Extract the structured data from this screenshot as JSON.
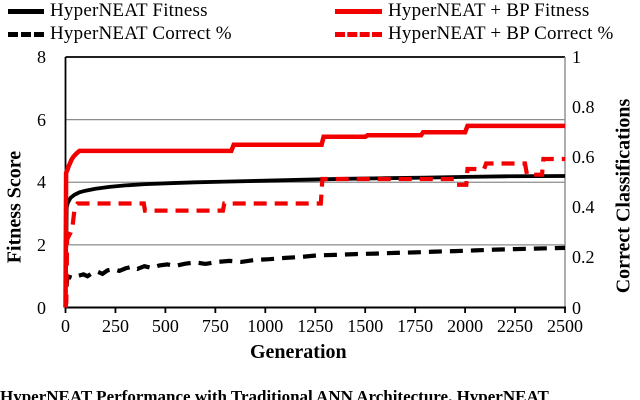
{
  "figure": {
    "caption_visible_fragment": "HyperNEAT Performance with Traditional ANN Architecture. HyperNEAT",
    "colors": {
      "series_red": "#f20000",
      "series_black": "#000000",
      "gridline": "#8c8c8c",
      "axis": "#000000",
      "background": "#ffffff"
    }
  },
  "chart_data": {
    "type": "line",
    "title": "",
    "xlabel": "Generation",
    "ylabel_left": "Fitness Score",
    "ylabel_right": "Correct Classifications",
    "xlim": [
      0,
      2500
    ],
    "ylim_left": [
      0,
      8
    ],
    "ylim_right": [
      0,
      1
    ],
    "grid": "horizontal-only",
    "legend_position": "top",
    "x_ticks": [
      {
        "label": "0",
        "v": 0
      },
      {
        "label": "250",
        "v": 250
      },
      {
        "label": "500",
        "v": 500
      },
      {
        "label": "750",
        "v": 750
      },
      {
        "label": "1000",
        "v": 1000
      },
      {
        "label": "1250",
        "v": 1250
      },
      {
        "label": "1500",
        "v": 1500
      },
      {
        "label": "1750",
        "v": 1750
      },
      {
        "label": "2000",
        "v": 2000
      },
      {
        "label": "2250",
        "v": 2250
      },
      {
        "label": "2500",
        "v": 2500
      }
    ],
    "y_left_ticks": [
      {
        "label": "0",
        "v": 0
      },
      {
        "label": "2",
        "v": 2
      },
      {
        "label": "4",
        "v": 4
      },
      {
        "label": "6",
        "v": 6
      },
      {
        "label": "8",
        "v": 8
      }
    ],
    "y_right_ticks": [
      {
        "label": "0",
        "v": 0
      },
      {
        "label": "0.2",
        "v": 0.2
      },
      {
        "label": "0.4",
        "v": 0.4
      },
      {
        "label": "0.6",
        "v": 0.6
      },
      {
        "label": "0.8",
        "v": 0.8
      },
      {
        "label": "1",
        "v": 1
      }
    ],
    "series": [
      {
        "name": "HyperNEAT Fitness",
        "axis": "left",
        "color": "#000000",
        "dash": "solid",
        "width": 3.8,
        "x": [
          0,
          6,
          12,
          25,
          45,
          70,
          100,
          150,
          220,
          300,
          400,
          520,
          650,
          800,
          1000,
          1200,
          1400,
          1600,
          1800,
          2000,
          2200,
          2500
        ],
        "y": [
          0,
          3.2,
          3.35,
          3.5,
          3.6,
          3.68,
          3.73,
          3.79,
          3.85,
          3.9,
          3.94,
          3.97,
          4.0,
          4.02,
          4.05,
          4.08,
          4.11,
          4.13,
          4.15,
          4.17,
          4.19,
          4.2
        ]
      },
      {
        "name": "HyperNEAT Correct %",
        "axis": "right",
        "color": "#000000",
        "dash": "dashed",
        "width": 4.2,
        "x": [
          0,
          8,
          20,
          40,
          65,
          90,
          110,
          135,
          160,
          185,
          210,
          240,
          270,
          300,
          330,
          360,
          395,
          430,
          470,
          510,
          550,
          600,
          650,
          700,
          760,
          820,
          880,
          950,
          1020,
          1100,
          1180,
          1260,
          1350,
          1450,
          1550,
          1650,
          1750,
          1850,
          1950,
          2050,
          2150,
          2250,
          2350,
          2450,
          2500
        ],
        "y": [
          0,
          0.115,
          0.122,
          0.117,
          0.127,
          0.132,
          0.125,
          0.138,
          0.143,
          0.134,
          0.148,
          0.153,
          0.146,
          0.156,
          0.162,
          0.154,
          0.165,
          0.158,
          0.168,
          0.172,
          0.166,
          0.175,
          0.18,
          0.174,
          0.182,
          0.186,
          0.182,
          0.19,
          0.193,
          0.198,
          0.202,
          0.208,
          0.21,
          0.213,
          0.215,
          0.218,
          0.22,
          0.223,
          0.225,
          0.228,
          0.231,
          0.233,
          0.235,
          0.237,
          0.238
        ]
      },
      {
        "name": "HyperNEAT + BP Fitness",
        "axis": "left",
        "color": "#f20000",
        "dash": "solid",
        "width": 4.5,
        "x": [
          0,
          3,
          10,
          15,
          22,
          30,
          40,
          55,
          70,
          830,
          842,
          1282,
          1292,
          1500,
          1512,
          1780,
          1790,
          2000,
          2012,
          2500
        ],
        "y": [
          0,
          4.3,
          4.4,
          4.5,
          4.6,
          4.72,
          4.82,
          4.92,
          5.0,
          5.0,
          5.2,
          5.2,
          5.45,
          5.45,
          5.5,
          5.5,
          5.6,
          5.6,
          5.8,
          5.8
        ]
      },
      {
        "name": "HyperNEAT + BP Correct %",
        "axis": "right",
        "color": "#f20000",
        "dash": "dashed",
        "width": 4.2,
        "x": [
          0,
          4,
          8,
          16,
          26,
          36,
          44,
          52,
          60,
          392,
          398,
          788,
          795,
          1278,
          1286,
          1950,
          1956,
          2006,
          2012,
          2095,
          2105,
          2300,
          2310,
          2385,
          2392,
          2500
        ],
        "y": [
          0,
          0.02,
          0.27,
          0.285,
          0.3,
          0.33,
          0.385,
          0.405,
          0.415,
          0.415,
          0.387,
          0.387,
          0.415,
          0.415,
          0.513,
          0.513,
          0.49,
          0.49,
          0.553,
          0.553,
          0.575,
          0.575,
          0.53,
          0.53,
          0.593,
          0.593
        ]
      }
    ]
  }
}
